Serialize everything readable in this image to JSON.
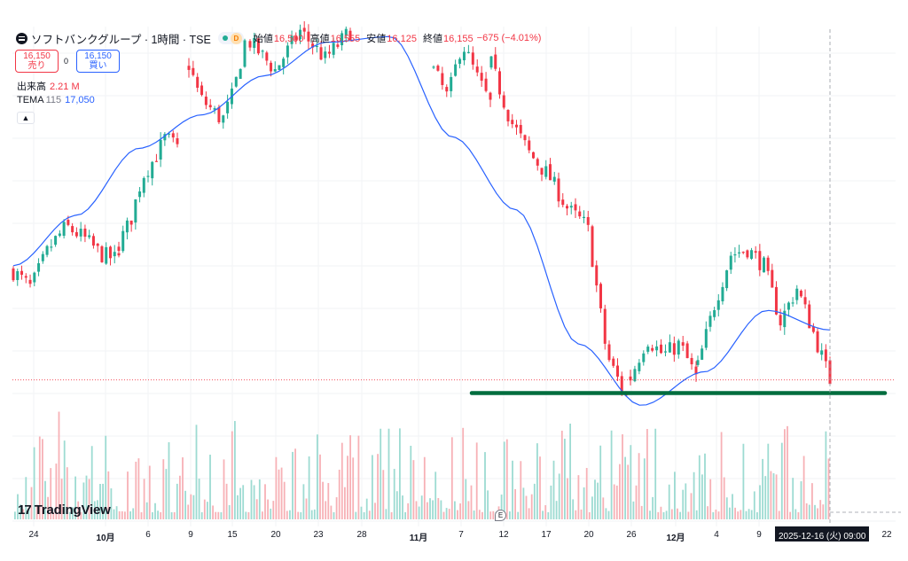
{
  "header": {
    "symbol_title": "ソフトバンクグループ · 1時間 · TSE",
    "market_badge": "D",
    "open_label": "始値",
    "open_value": "16,500",
    "high_label": "高値",
    "high_value": "16,555",
    "low_label": "安値",
    "low_value": "16,125",
    "close_label": "終値",
    "close_value": "16,155",
    "change_text": "−675 (−4.01%)"
  },
  "trade": {
    "sell_price": "16,150",
    "sell_label": "売り",
    "spread": "0",
    "buy_price": "16,150",
    "buy_label": "買い"
  },
  "volume_legend": {
    "label": "出来高",
    "value": "2.21 M"
  },
  "tema_legend": {
    "label": "TEMA",
    "period": "115",
    "value": "17,050"
  },
  "branding": {
    "logo_text": "TradingView",
    "logo_mark": "17"
  },
  "earnings_marker": "E",
  "crosshair_time_label": "2025-12-16 (火)  09:00",
  "colors": {
    "up": "#22ab94",
    "down": "#f23645",
    "tema": "#2962ff",
    "support": "#006d3e",
    "volume_up": "#9ddbd2",
    "volume_down": "#f7b1b6"
  },
  "chart_data": {
    "type": "candlestick",
    "title": "ソフトバンクグループ · 1時間 · TSE",
    "x_tick_labels": [
      "24",
      "10月",
      "6",
      "9",
      "15",
      "20",
      "23",
      "28",
      "11月",
      "7",
      "12",
      "17",
      "20",
      "26",
      "12月",
      "4",
      "9",
      "22"
    ],
    "x_tick_is_month": [
      false,
      true,
      false,
      false,
      false,
      false,
      false,
      false,
      true,
      false,
      false,
      false,
      false,
      false,
      true,
      false,
      false,
      false
    ],
    "y_range": [
      15500,
      22400
    ],
    "price_segments": [
      {
        "from": "Sep 22",
        "to": "Sep 30",
        "path": [
          18100,
          17800,
          18500,
          18900,
          18700,
          18400,
          18300
        ]
      },
      {
        "from": "Oct 1",
        "to": "Oct 8",
        "path": [
          18600,
          19000,
          19800,
          20100,
          20500,
          20300
        ]
      },
      {
        "from": "Oct 9",
        "to": "Oct 17",
        "path": [
          21800,
          21200,
          21000,
          20800,
          21300,
          22200
        ]
      },
      {
        "from": "Oct 20",
        "to": "Oct 28",
        "path": [
          22200,
          21700,
          22400,
          21900,
          22400
        ]
      },
      {
        "from": "Nov 4",
        "to": "Nov 11",
        "path": [
          21700,
          21200,
          22200,
          21600,
          21100
        ]
      },
      {
        "from": "Nov 12",
        "to": "Nov 25",
        "path": [
          21800,
          20800,
          20200,
          19800,
          19200,
          18900,
          16600,
          15850
        ]
      },
      {
        "from": "Nov 26",
        "to": "Dec 3",
        "path": [
          16200,
          16900,
          16600,
          16800,
          16200
        ]
      },
      {
        "from": "Dec 3",
        "to": "Dec 16",
        "path": [
          16400,
          17500,
          18400,
          18500,
          18200,
          17200,
          17800,
          17000,
          16155
        ]
      }
    ],
    "tema": {
      "period": 115,
      "path": [
        18200,
        19100,
        20300,
        20900,
        21600,
        22200,
        22300,
        20500,
        19200,
        16800,
        15700,
        16300,
        17400,
        17050
      ]
    },
    "support_level": 15920,
    "last_price_level": 16155,
    "volume": {
      "label": "出来高",
      "last": "2.21M"
    }
  }
}
